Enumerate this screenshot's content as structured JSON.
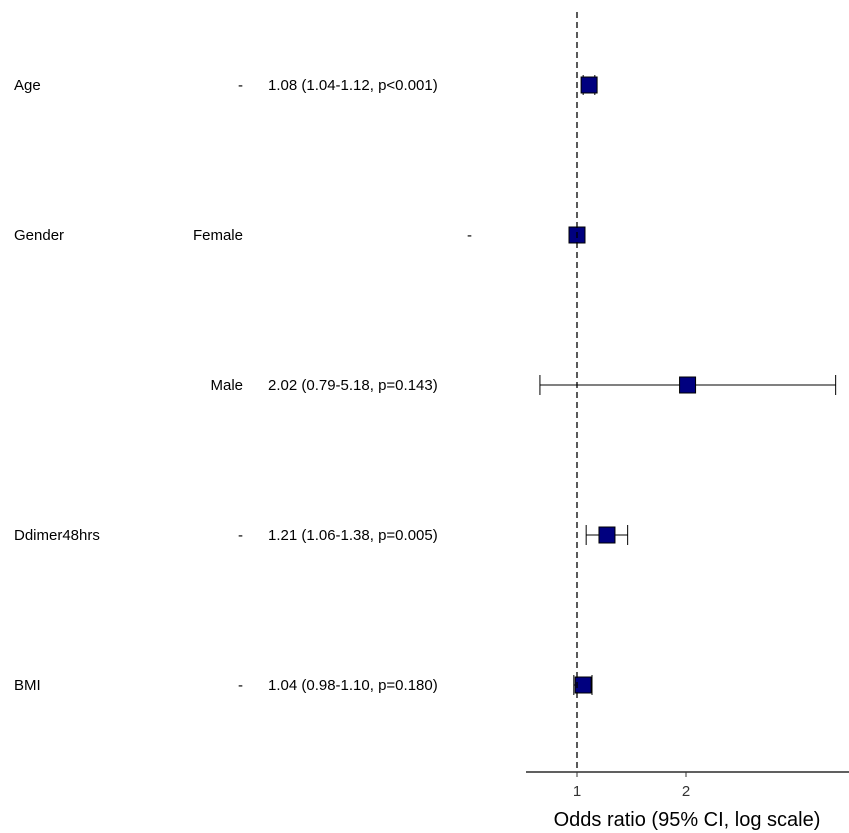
{
  "chart_data": {
    "type": "forest",
    "xlabel": "Odds ratio (95% CI, log scale)",
    "x_scale": "log",
    "xlim": [
      0.66,
      3.7
    ],
    "xticks": [
      1,
      2
    ],
    "reference_line": 1,
    "rows": [
      {
        "variable": "Age",
        "level": "-",
        "text": "1.08 (1.04-1.12, p<0.001)",
        "or": 1.08,
        "lo": 1.04,
        "hi": 1.12
      },
      {
        "variable": "Gender",
        "level": "Female",
        "text": "-",
        "or": 1.0,
        "lo": null,
        "hi": null
      },
      {
        "variable": "",
        "level": "Male",
        "text": "2.02 (0.79-5.18, p=0.143)",
        "or": 2.02,
        "lo": 0.79,
        "hi": 5.18
      },
      {
        "variable": "Ddimer48hrs",
        "level": "-",
        "text": "1.21 (1.06-1.38, p=0.005)",
        "or": 1.21,
        "lo": 1.06,
        "hi": 1.38
      },
      {
        "variable": "BMI",
        "level": "-",
        "text": "1.04 (0.98-1.10, p=0.180)",
        "or": 1.04,
        "lo": 0.98,
        "hi": 1.1
      }
    ],
    "colors": {
      "marker": "#00007F",
      "marker_edge": "#000000",
      "line": "#000000"
    }
  }
}
